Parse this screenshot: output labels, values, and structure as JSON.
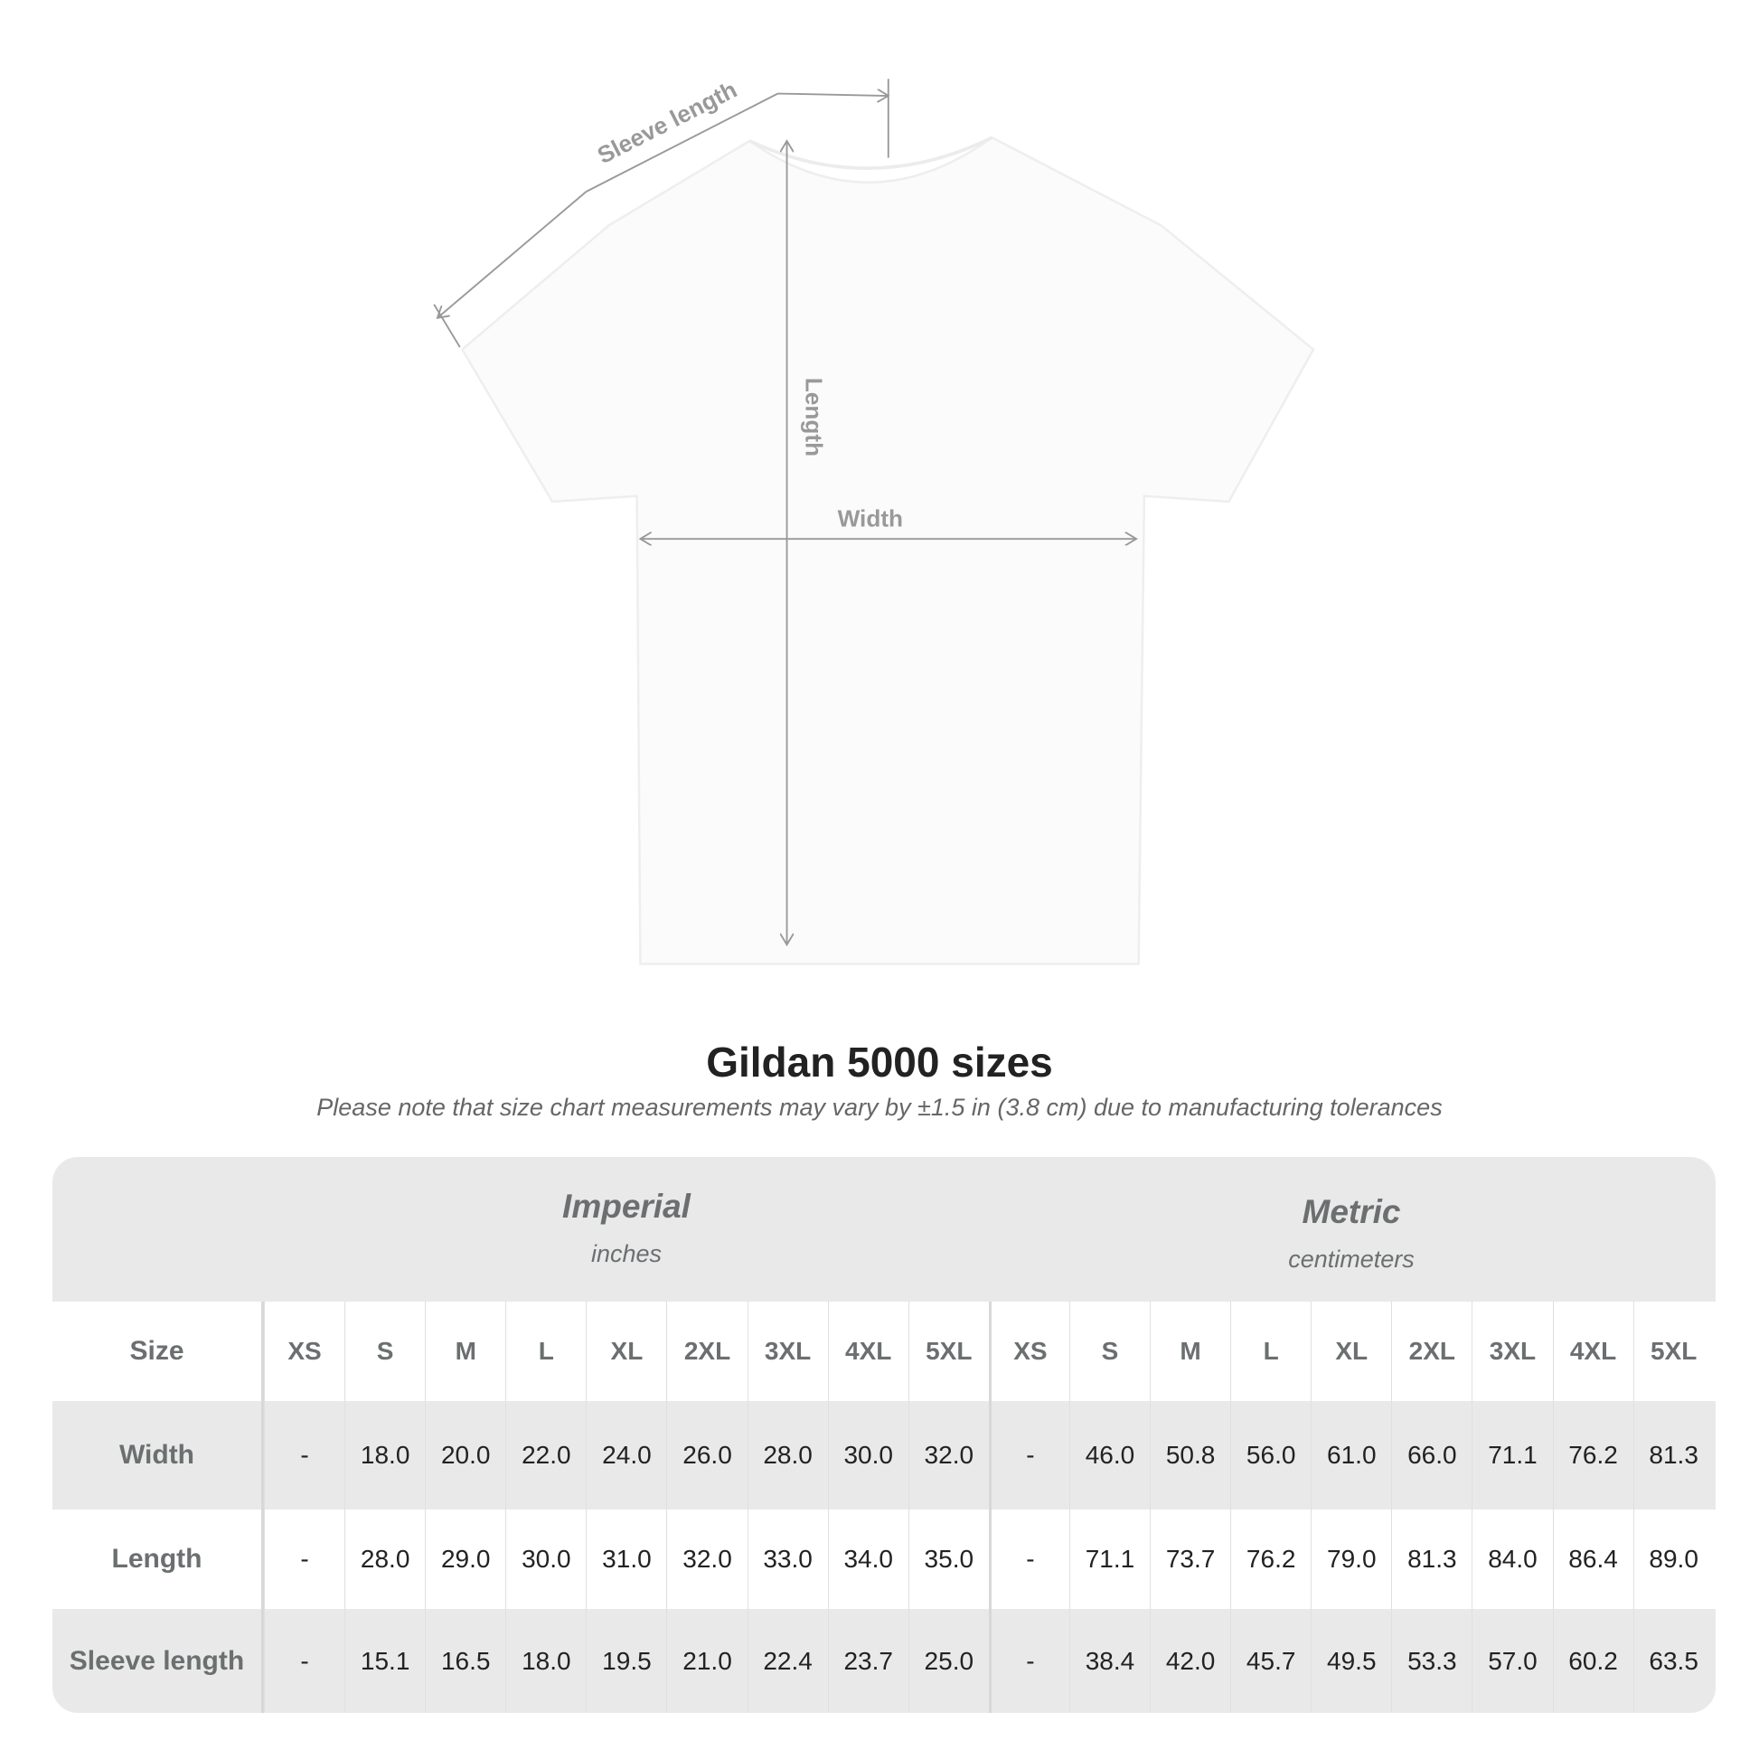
{
  "diagram": {
    "labels": {
      "sleeve": "Sleeve length",
      "length": "Length",
      "width": "Width"
    }
  },
  "title": "Gildan 5000 sizes",
  "note": "Please note that size chart measurements may vary by ±1.5 in (3.8 cm) due to manufacturing tolerances",
  "table": {
    "imperial": {
      "name": "Imperial",
      "unit": "inches"
    },
    "metric": {
      "name": "Metric",
      "unit": "centimeters"
    },
    "size_label": "Size",
    "sizes": [
      "XS",
      "S",
      "M",
      "L",
      "XL",
      "2XL",
      "3XL",
      "4XL",
      "5XL"
    ],
    "rows": [
      {
        "label": "Width",
        "imperial": [
          "-",
          "18.0",
          "20.0",
          "22.0",
          "24.0",
          "26.0",
          "28.0",
          "30.0",
          "32.0"
        ],
        "metric": [
          "-",
          "46.0",
          "50.8",
          "56.0",
          "61.0",
          "66.0",
          "71.1",
          "76.2",
          "81.3"
        ]
      },
      {
        "label": "Length",
        "imperial": [
          "-",
          "28.0",
          "29.0",
          "30.0",
          "31.0",
          "32.0",
          "33.0",
          "34.0",
          "35.0"
        ],
        "metric": [
          "-",
          "71.1",
          "73.7",
          "76.2",
          "79.0",
          "81.3",
          "84.0",
          "86.4",
          "89.0"
        ]
      },
      {
        "label": "Sleeve length",
        "imperial": [
          "-",
          "15.1",
          "16.5",
          "18.0",
          "19.5",
          "21.0",
          "22.4",
          "23.7",
          "25.0"
        ],
        "metric": [
          "-",
          "38.4",
          "42.0",
          "45.7",
          "49.5",
          "53.3",
          "57.0",
          "60.2",
          "63.5"
        ]
      }
    ]
  },
  "colors": {
    "header_bg": "#e9e9e9",
    "label_text": "#6b6f70",
    "value_text": "#222222",
    "measure_line": "#999999"
  }
}
